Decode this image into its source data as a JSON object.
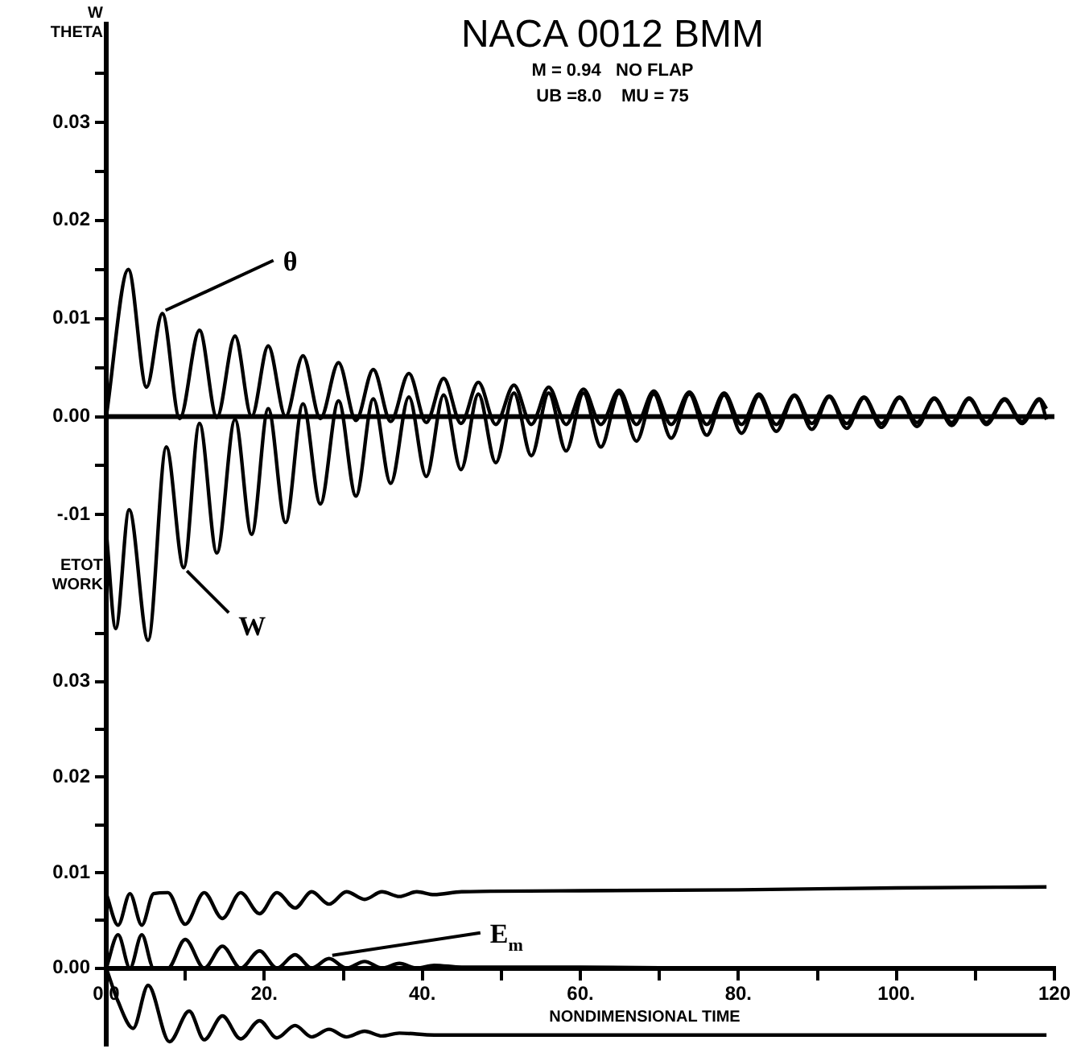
{
  "chart_data": [
    {
      "type": "line",
      "title": "NACA 0012 BMM",
      "subtitle": "M = 0.94   NO FLAP\nUB =8.0    MU = 75",
      "ylabel": "W\nTHETA",
      "xlim": [
        0,
        120
      ],
      "tick_labels": "y",
      "ref_lines": [
        {
          "axis": "y",
          "value": 0,
          "color": "#000000"
        }
      ],
      "ylim": [
        -0.024,
        0.04
      ],
      "yticks": [
        {
          "value": 0.035,
          "label": null
        },
        {
          "value": 0.03,
          "label": "0.03"
        },
        {
          "value": 0.025,
          "label": null
        },
        {
          "value": 0.02,
          "label": "0.02"
        },
        {
          "value": 0.015,
          "label": null
        },
        {
          "value": 0.01,
          "label": "0.01"
        },
        {
          "value": 0.005,
          "label": null
        },
        {
          "value": 0,
          "label": "0.00"
        },
        {
          "value": -0.005,
          "label": null
        },
        {
          "value": -0.01,
          "label": "-.01"
        }
      ],
      "grid": false,
      "legend": false,
      "marker": "none",
      "line_style": "solid",
      "series": [
        {
          "name": "θ",
          "color": "#000000",
          "x": [
            0,
            2.8,
            5.1,
            7.1,
            9.3,
            11.8,
            14.0,
            16.3,
            18.4,
            20.5,
            22.7,
            24.9,
            27.1,
            29.4,
            31.6,
            33.8,
            36.0,
            38.3,
            40.5,
            42.7,
            44.9,
            47.1,
            49.3,
            51.6,
            53.8,
            56.0,
            58.2,
            60.4,
            62.6,
            64.9,
            67.1,
            69.3,
            71.5,
            73.8,
            76.0,
            78.2,
            80.4,
            82.6,
            84.8,
            87.1,
            89.3,
            91.5,
            93.7,
            95.9,
            98.1,
            100.4,
            102.6,
            104.8,
            107.0,
            109.2,
            111.4,
            113.7,
            115.9,
            118.1,
            119
          ],
          "values": [
            0,
            0.015,
            0.003,
            0.0105,
            -0.0002,
            0.0088,
            -0.0001,
            0.0082,
            0,
            0.0072,
            0,
            0.0062,
            -0.0002,
            0.0055,
            -0.0004,
            0.0048,
            -0.0005,
            0.0044,
            -0.0006,
            0.0039,
            -0.0007,
            0.0035,
            -0.0008,
            0.0032,
            -0.0008,
            0.003,
            -0.0008,
            0.0028,
            -0.0008,
            0.0027,
            -0.0008,
            0.0026,
            -0.0008,
            0.0025,
            -0.0008,
            0.0024,
            -0.0008,
            0.0023,
            -0.0008,
            0.0022,
            -0.0007,
            0.0021,
            -0.0007,
            0.002,
            -0.0007,
            0.002,
            -0.0006,
            0.0019,
            -0.0006,
            0.0019,
            -0.0006,
            0.0018,
            -0.0005,
            0.0018,
            0.0008
          ]
        },
        {
          "name": "W",
          "color": "#000000",
          "x": [
            0,
            1.2,
            2.9,
            5.3,
            7.6,
            9.8,
            11.8,
            14.0,
            16.3,
            18.4,
            20.5,
            22.7,
            24.9,
            27.1,
            29.4,
            31.6,
            33.8,
            36.0,
            38.3,
            40.5,
            42.7,
            44.9,
            47.1,
            49.3,
            51.6,
            53.8,
            56.0,
            58.2,
            60.4,
            62.6,
            64.9,
            67.1,
            69.3,
            71.5,
            73.8,
            76.0,
            78.2,
            80.4,
            82.6,
            84.8,
            87.1,
            89.3,
            91.5,
            93.7,
            95.9,
            98.1,
            100.4,
            102.6,
            104.8,
            107.0,
            109.2,
            111.4,
            113.7,
            115.9,
            118.1,
            119
          ],
          "values": [
            -0.0117,
            -0.0216,
            -0.0095,
            -0.0228,
            -0.0031,
            -0.0154,
            -0.0007,
            -0.0139,
            -0.0003,
            -0.012,
            0.0008,
            -0.0108,
            0.0013,
            -0.0089,
            0.0016,
            -0.0081,
            0.0018,
            -0.0068,
            0.002,
            -0.0061,
            0.0022,
            -0.0054,
            0.0023,
            -0.0047,
            0.0024,
            -0.004,
            0.0024,
            -0.0035,
            0.0024,
            -0.0031,
            0.0024,
            -0.0025,
            0.0023,
            -0.0022,
            0.0023,
            -0.0019,
            0.0022,
            -0.0017,
            0.0021,
            -0.0015,
            0.0021,
            -0.0013,
            0.002,
            -0.0012,
            0.0019,
            -0.0011,
            0.0019,
            -0.001,
            0.0018,
            -0.0009,
            0.0018,
            -0.0008,
            0.0017,
            -0.0007,
            0.0017,
            -0.0003
          ]
        }
      ]
    },
    {
      "type": "line",
      "ylabel": "ETOT\nWORK",
      "xlabel": "NONDIMENSIONAL TIME",
      "xlim": [
        0,
        120
      ],
      "xticks": [
        {
          "value": 0,
          "label": "0.0"
        },
        {
          "value": 10,
          "label": null
        },
        {
          "value": 20,
          "label": "20."
        },
        {
          "value": 30,
          "label": null
        },
        {
          "value": 40,
          "label": "40."
        },
        {
          "value": 50,
          "label": null
        },
        {
          "value": 60,
          "label": "60."
        },
        {
          "value": 70,
          "label": null
        },
        {
          "value": 80,
          "label": "80."
        },
        {
          "value": 90,
          "label": null
        },
        {
          "value": 100,
          "label": "100."
        },
        {
          "value": 110,
          "label": null
        },
        120
      ],
      "ylim": [
        -0.008,
        0.04
      ],
      "yticks": [
        {
          "value": 0,
          "label": "0.00"
        },
        {
          "value": 0.005,
          "label": null
        },
        {
          "value": 0.01,
          "label": "0.01"
        },
        {
          "value": 0.015,
          "label": null
        },
        {
          "value": 0.02,
          "label": "0.02"
        },
        {
          "value": 0.025,
          "label": null
        },
        {
          "value": 0.03,
          "label": "0.03"
        },
        {
          "value": 0.035,
          "label": null
        }
      ],
      "grid": false,
      "legend": false,
      "marker": "none",
      "line_style": "solid",
      "series": [
        {
          "color": "#000000",
          "x": [
            0,
            1.5,
            3,
            4.5,
            6,
            7.8,
            10,
            12.4,
            14.7,
            17,
            19.4,
            21.6,
            23.9,
            26,
            28.2,
            30.4,
            32.7,
            34.9,
            37.1,
            39.3,
            41.5,
            45,
            60,
            80,
            100,
            119
          ],
          "values": [
            0.0078,
            0.0045,
            0.0078,
            0.0045,
            0.0078,
            0.0079,
            0.0046,
            0.0079,
            0.0052,
            0.0079,
            0.0057,
            0.0079,
            0.0063,
            0.008,
            0.0067,
            0.008,
            0.0072,
            0.008,
            0.0075,
            0.008,
            0.0077,
            0.008,
            0.0081,
            0.0082,
            0.0084,
            0.0085
          ]
        },
        {
          "name": "E$_{m}$",
          "color": "#000000",
          "x": [
            0,
            1.5,
            3,
            4.5,
            6,
            7.8,
            10,
            12.4,
            14.7,
            17,
            19.4,
            21.6,
            23.9,
            26,
            28.2,
            30.4,
            32.7,
            34.9,
            37.1,
            39.3,
            41.5,
            45,
            60,
            80,
            100,
            119
          ],
          "values": [
            0,
            0.0035,
            0,
            0.0035,
            0,
            0,
            0.003,
            0,
            0.0023,
            0,
            0.0018,
            0,
            0.0014,
            0,
            0.001,
            0,
            0.0007,
            0,
            0.0005,
            0,
            0.0003,
            0.0001,
            0.0001,
            0,
            0,
            0
          ]
        },
        {
          "color": "#000000",
          "x": [
            0,
            1.5,
            3.4,
            5.3,
            8,
            10.5,
            12.4,
            14.7,
            17,
            19.4,
            21.6,
            23.9,
            26,
            28.2,
            30.4,
            32.7,
            34.9,
            37.1,
            41.5,
            50,
            60,
            80,
            100,
            119
          ],
          "values": [
            0,
            -0.0035,
            -0.0063,
            -0.0018,
            -0.0077,
            -0.0045,
            -0.0075,
            -0.005,
            -0.0074,
            -0.0055,
            -0.0073,
            -0.006,
            -0.0072,
            -0.0064,
            -0.0072,
            -0.0066,
            -0.0071,
            -0.0068,
            -0.007,
            -0.007,
            -0.007,
            -0.007,
            -0.007,
            -0.007
          ]
        }
      ]
    }
  ]
}
